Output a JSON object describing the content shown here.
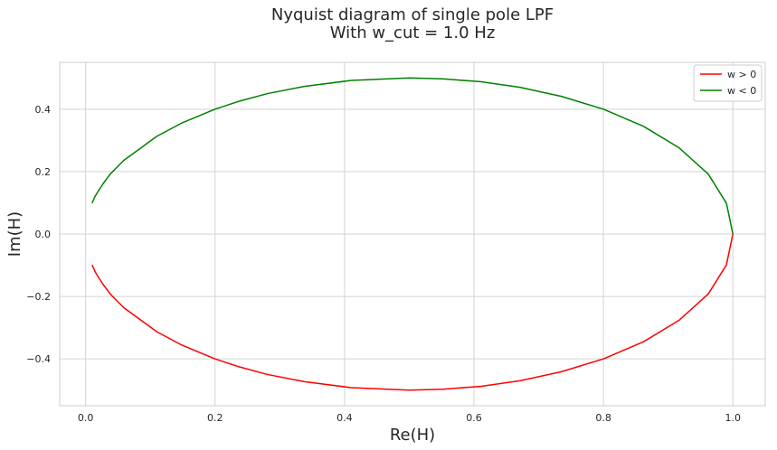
{
  "chart_data": {
    "type": "line",
    "title": "Nyquist diagram of single pole LPF",
    "subtitle": "With w_cut = 1.0 Hz",
    "xlabel": "Re(H)",
    "ylabel": "Im(H)",
    "xlim": [
      -0.04,
      1.05
    ],
    "ylim": [
      -0.55,
      0.55
    ],
    "xticks": [
      0.0,
      0.2,
      0.4,
      0.6,
      0.8,
      1.0
    ],
    "xtick_labels": [
      "0.0",
      "0.2",
      "0.4",
      "0.6",
      "0.8",
      "1.0"
    ],
    "yticks": [
      -0.4,
      -0.2,
      0.0,
      0.2,
      0.4
    ],
    "ytick_labels": [
      "−0.4",
      "−0.2",
      "0.0",
      "0.2",
      "0.4"
    ],
    "grid": true,
    "legend_position": "top-right",
    "series": [
      {
        "name": "w > 0",
        "color": "#ff0000",
        "x": [
          1.0,
          0.99,
          0.962,
          0.917,
          0.862,
          0.8,
          0.735,
          0.671,
          0.61,
          0.552,
          0.5,
          0.41,
          0.338,
          0.281,
          0.235,
          0.2,
          0.148,
          0.11,
          0.059,
          0.038,
          0.027,
          0.02,
          0.015,
          0.012,
          0.0099
        ],
        "y": [
          0.0,
          -0.099,
          -0.192,
          -0.276,
          -0.345,
          -0.4,
          -0.441,
          -0.47,
          -0.488,
          -0.497,
          -0.5,
          -0.492,
          -0.473,
          -0.45,
          -0.424,
          -0.4,
          -0.355,
          -0.313,
          -0.236,
          -0.192,
          -0.161,
          -0.139,
          -0.122,
          -0.108,
          -0.099
        ]
      },
      {
        "name": "w < 0",
        "color": "#008000",
        "x": [
          1.0,
          0.99,
          0.962,
          0.917,
          0.862,
          0.8,
          0.735,
          0.671,
          0.61,
          0.552,
          0.5,
          0.41,
          0.338,
          0.281,
          0.235,
          0.2,
          0.148,
          0.11,
          0.059,
          0.038,
          0.027,
          0.02,
          0.015,
          0.012,
          0.0099
        ],
        "y": [
          0.0,
          0.099,
          0.192,
          0.276,
          0.345,
          0.4,
          0.441,
          0.47,
          0.488,
          0.497,
          0.5,
          0.492,
          0.473,
          0.45,
          0.424,
          0.4,
          0.355,
          0.313,
          0.236,
          0.192,
          0.161,
          0.139,
          0.122,
          0.108,
          0.099
        ]
      }
    ]
  }
}
